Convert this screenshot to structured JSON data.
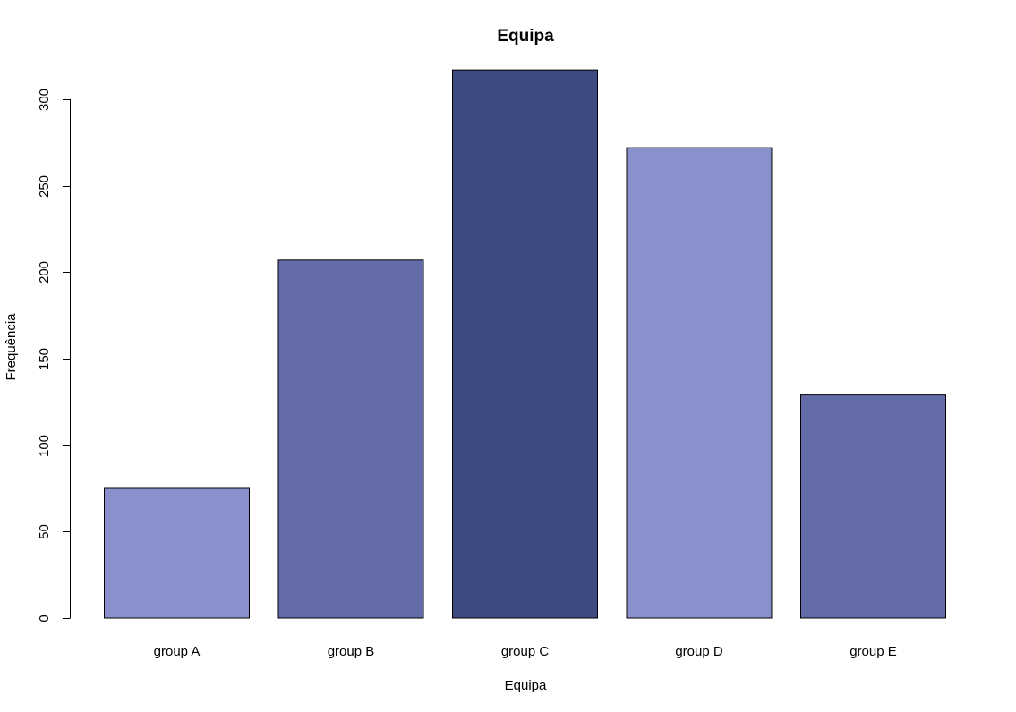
{
  "chart_data": {
    "type": "bar",
    "title": "Equipa",
    "xlabel": "Equipa",
    "ylabel": "Frequência",
    "categories": [
      "group A",
      "group B",
      "group C",
      "group D",
      "group E"
    ],
    "values": [
      75,
      207,
      317,
      272,
      129
    ],
    "ylim": [
      0,
      300
    ],
    "yticks": [
      0,
      50,
      100,
      150,
      200,
      250,
      300
    ],
    "colors": [
      "#8a90cc",
      "#636ca8",
      "#3e4a80",
      "#8a90cc",
      "#636ca8"
    ],
    "grid": false,
    "legend": "none"
  }
}
